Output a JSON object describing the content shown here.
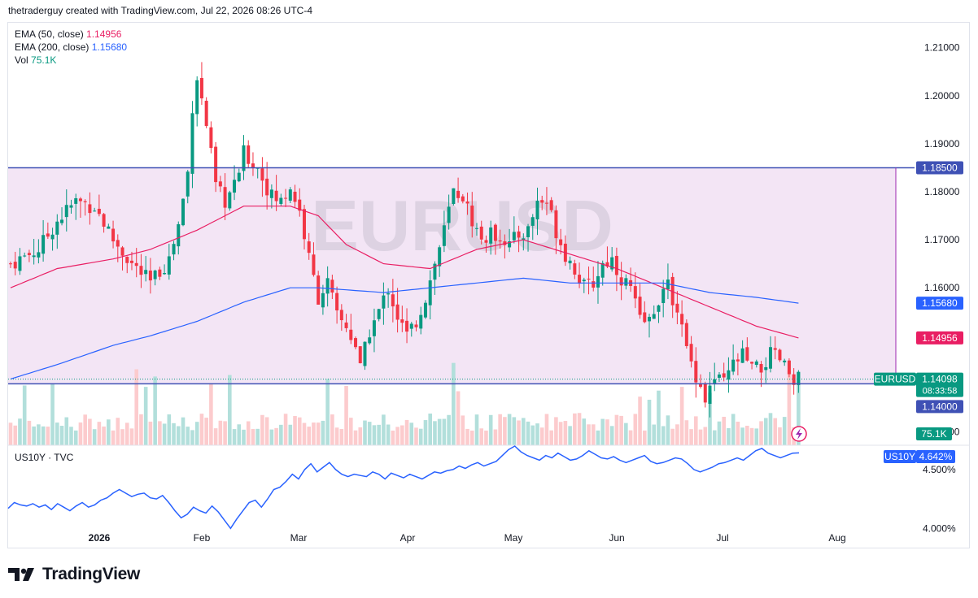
{
  "header": {
    "text": "thetraderguy created with TradingView.com, Jul 22, 2026 08:26 UTC-4"
  },
  "legend": {
    "ema50_label": "EMA (50, close)",
    "ema50_value": "1.14956",
    "ema200_label": "EMA (200, close)",
    "ema200_value": "1.15680",
    "vol_label": "Vol",
    "vol_value": "75.1K"
  },
  "watermark": "EURUSD",
  "sub_legend": "US10Y · TVC",
  "logo_text": "TradingView",
  "colors": {
    "up": "#089981",
    "down": "#f23645",
    "ema50": "#e91e63",
    "ema200": "#2962ff",
    "zone": "#f3e5f5",
    "zone_line": "#3f51b5",
    "us10y": "#2962ff"
  },
  "badges": {
    "resistance": "1.18500",
    "ema200": "1.15680",
    "ema50": "1.14956",
    "symbol": "EURUSD",
    "price": "1.14098",
    "countdown": "08:33:58",
    "support": "1.14000",
    "volume": "75.1K",
    "us10y_symbol": "US10Y",
    "us10y_value": "4.642%"
  },
  "chart_data": [
    {
      "type": "candlestick",
      "symbol": "EURUSD",
      "x_ticks": [
        "2026",
        "Feb",
        "Mar",
        "Apr",
        "May",
        "Jun",
        "Jul",
        "Aug"
      ],
      "y_ticks": [
        "1.21000",
        "1.20000",
        "1.19000",
        "1.18000",
        "1.17000",
        "1.16000",
        "1.13000"
      ],
      "ylim": [
        1.1272,
        1.2152
      ],
      "zone": [
        1.14,
        1.185
      ],
      "last_price": 1.14098,
      "anchors": [
        [
          0,
          1.165
        ],
        [
          6,
          1.168
        ],
        [
          10,
          1.174
        ],
        [
          14,
          1.178
        ],
        [
          18,
          1.177
        ],
        [
          22,
          1.17
        ],
        [
          26,
          1.165
        ],
        [
          30,
          1.161
        ],
        [
          34,
          1.166
        ],
        [
          36,
          1.173
        ],
        [
          38,
          1.184
        ],
        [
          39,
          1.198
        ],
        [
          40,
          1.204
        ],
        [
          42,
          1.194
        ],
        [
          44,
          1.181
        ],
        [
          46,
          1.178
        ],
        [
          48,
          1.181
        ],
        [
          50,
          1.188
        ],
        [
          53,
          1.185
        ],
        [
          56,
          1.179
        ],
        [
          58,
          1.178
        ],
        [
          60,
          1.181
        ],
        [
          62,
          1.176
        ],
        [
          64,
          1.166
        ],
        [
          66,
          1.158
        ],
        [
          68,
          1.161
        ],
        [
          70,
          1.154
        ],
        [
          72,
          1.152
        ],
        [
          74,
          1.148
        ],
        [
          75,
          1.143
        ],
        [
          77,
          1.151
        ],
        [
          79,
          1.155
        ],
        [
          81,
          1.16
        ],
        [
          83,
          1.154
        ],
        [
          85,
          1.15
        ],
        [
          87,
          1.153
        ],
        [
          89,
          1.158
        ],
        [
          91,
          1.165
        ],
        [
          93,
          1.172
        ],
        [
          95,
          1.18
        ],
        [
          97,
          1.179
        ],
        [
          99,
          1.174
        ],
        [
          101,
          1.17
        ],
        [
          103,
          1.171
        ],
        [
          105,
          1.171
        ],
        [
          107,
          1.169
        ],
        [
          109,
          1.171
        ],
        [
          111,
          1.172
        ],
        [
          113,
          1.178
        ],
        [
          115,
          1.178
        ],
        [
          117,
          1.172
        ],
        [
          119,
          1.167
        ],
        [
          121,
          1.164
        ],
        [
          123,
          1.16
        ],
        [
          125,
          1.161
        ],
        [
          127,
          1.165
        ],
        [
          129,
          1.166
        ],
        [
          131,
          1.162
        ],
        [
          133,
          1.16
        ],
        [
          135,
          1.153
        ],
        [
          137,
          1.153
        ],
        [
          139,
          1.158
        ],
        [
          141,
          1.16
        ],
        [
          143,
          1.156
        ],
        [
          145,
          1.147
        ],
        [
          147,
          1.142
        ],
        [
          149,
          1.137
        ],
        [
          151,
          1.141
        ],
        [
          153,
          1.14
        ],
        [
          155,
          1.144
        ],
        [
          157,
          1.146
        ],
        [
          159,
          1.143
        ],
        [
          161,
          1.143
        ],
        [
          163,
          1.146
        ],
        [
          165,
          1.145
        ],
        [
          167,
          1.142
        ],
        [
          169,
          1.141
        ]
      ],
      "ema50": [
        [
          0,
          1.16
        ],
        [
          10,
          1.164
        ],
        [
          22,
          1.166
        ],
        [
          30,
          1.168
        ],
        [
          40,
          1.172
        ],
        [
          50,
          1.177
        ],
        [
          60,
          1.177
        ],
        [
          66,
          1.175
        ],
        [
          72,
          1.169
        ],
        [
          80,
          1.165
        ],
        [
          90,
          1.164
        ],
        [
          100,
          1.168
        ],
        [
          110,
          1.17
        ],
        [
          120,
          1.167
        ],
        [
          130,
          1.164
        ],
        [
          140,
          1.16
        ],
        [
          150,
          1.156
        ],
        [
          160,
          1.152
        ],
        [
          169,
          1.14956
        ]
      ],
      "ema200": [
        [
          0,
          1.141
        ],
        [
          10,
          1.144
        ],
        [
          22,
          1.148
        ],
        [
          30,
          1.15
        ],
        [
          40,
          1.153
        ],
        [
          50,
          1.157
        ],
        [
          60,
          1.16
        ],
        [
          66,
          1.16
        ],
        [
          80,
          1.159
        ],
        [
          90,
          1.16
        ],
        [
          100,
          1.161
        ],
        [
          110,
          1.162
        ],
        [
          120,
          1.161
        ],
        [
          130,
          1.161
        ],
        [
          140,
          1.161
        ],
        [
          150,
          1.159
        ],
        [
          160,
          1.158
        ],
        [
          169,
          1.1568
        ]
      ],
      "volume_last": "75.1K"
    },
    {
      "type": "line",
      "symbol": "US10Y",
      "y_ticks": [
        "4.500%",
        "4.000%"
      ],
      "ylim": [
        3.85,
        4.7
      ],
      "values": [
        4.17,
        4.22,
        4.2,
        4.19,
        4.21,
        4.18,
        4.2,
        4.16,
        4.21,
        4.18,
        4.15,
        4.19,
        4.22,
        4.18,
        4.2,
        4.24,
        4.26,
        4.3,
        4.33,
        4.3,
        4.27,
        4.29,
        4.3,
        4.26,
        4.25,
        4.28,
        4.22,
        4.15,
        4.09,
        4.12,
        4.18,
        4.15,
        4.13,
        4.19,
        4.14,
        4.07,
        4.0,
        4.08,
        4.15,
        4.22,
        4.24,
        4.18,
        4.25,
        4.33,
        4.35,
        4.4,
        4.46,
        4.42,
        4.5,
        4.55,
        4.48,
        4.52,
        4.56,
        4.5,
        4.46,
        4.44,
        4.46,
        4.45,
        4.44,
        4.48,
        4.46,
        4.42,
        4.47,
        4.45,
        4.43,
        4.46,
        4.44,
        4.42,
        4.45,
        4.48,
        4.47,
        4.49,
        4.5,
        4.53,
        4.51,
        4.54,
        4.56,
        4.53,
        4.55,
        4.57,
        4.62,
        4.67,
        4.7,
        4.65,
        4.62,
        4.6,
        4.58,
        4.62,
        4.6,
        4.64,
        4.61,
        4.58,
        4.59,
        4.62,
        4.66,
        4.63,
        4.6,
        4.59,
        4.61,
        4.58,
        4.56,
        4.58,
        4.6,
        4.62,
        4.57,
        4.55,
        4.56,
        4.58,
        4.6,
        4.59,
        4.55,
        4.5,
        4.48,
        4.5,
        4.52,
        4.55,
        4.56,
        4.58,
        4.6,
        4.58,
        4.62,
        4.66,
        4.68,
        4.64,
        4.62,
        4.6,
        4.62,
        4.64,
        4.642
      ]
    }
  ]
}
